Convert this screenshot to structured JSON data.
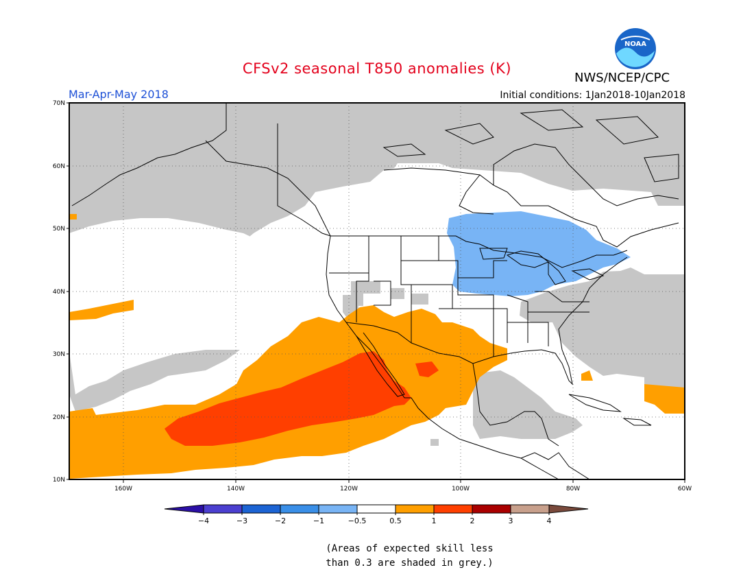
{
  "title": "CFSv2 seasonal T850 anomalies (K)",
  "agency": "NWS/NCEP/CPC",
  "logo_text": "NOAA",
  "season": "Mar-Apr-May 2018",
  "initial_conditions": "Initial conditions: 1Jan2018-10Jan2018",
  "lat_labels": [
    "70N",
    "60N",
    "50N",
    "40N",
    "30N",
    "20N",
    "10N"
  ],
  "lon_labels": [
    "160W",
    "140W",
    "120W",
    "100W",
    "80W",
    "60W"
  ],
  "colorbar": {
    "ticks": [
      "-4",
      "-3",
      "-2",
      "-1",
      "-0.5",
      "0.5",
      "1",
      "2",
      "3",
      "4"
    ],
    "colors": [
      "#2b0fa6",
      "#4b3fd0",
      "#1c64d4",
      "#3a8fe8",
      "#78b4f5",
      "#ffffff",
      "#ff9f00",
      "#ff3f00",
      "#aa0000",
      "#c8a08c",
      "#7a4a3c"
    ]
  },
  "regions": {
    "grey": "#c6c6c6",
    "warm_05_1": "#ff9f00",
    "warm_1_2": "#ff3f00",
    "cool_m1_m05": "#78b4f5"
  },
  "note": [
    "(Areas of expected skill less",
    "than 0.3 are shaded in grey.)"
  ]
}
